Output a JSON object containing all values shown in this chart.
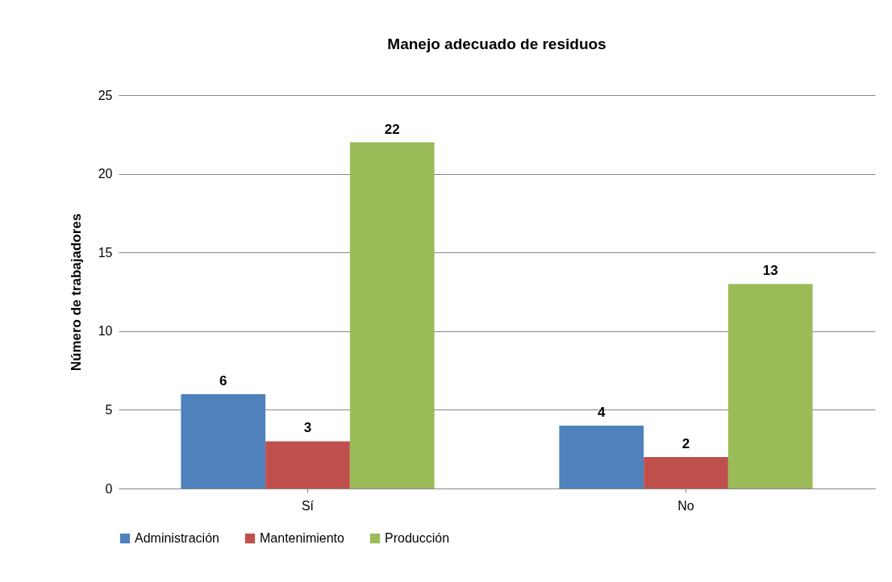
{
  "chart_data": {
    "type": "bar",
    "title": "Manejo adecuado de residuos",
    "ylabel": "Número de trabajadores",
    "categories": [
      "Sí",
      "No"
    ],
    "series": [
      {
        "name": "Administración",
        "color": "#4f81bd",
        "values": [
          6,
          4
        ]
      },
      {
        "name": "Mantenimiento",
        "color": "#c0504d",
        "values": [
          3,
          2
        ]
      },
      {
        "name": "Producción",
        "color": "#9bbb59",
        "values": [
          22,
          13
        ]
      }
    ],
    "ylim": [
      0,
      25
    ],
    "yticks": [
      0,
      5,
      10,
      15,
      20,
      25
    ],
    "grid": "y",
    "legend": "bottom",
    "data_labels": true
  }
}
